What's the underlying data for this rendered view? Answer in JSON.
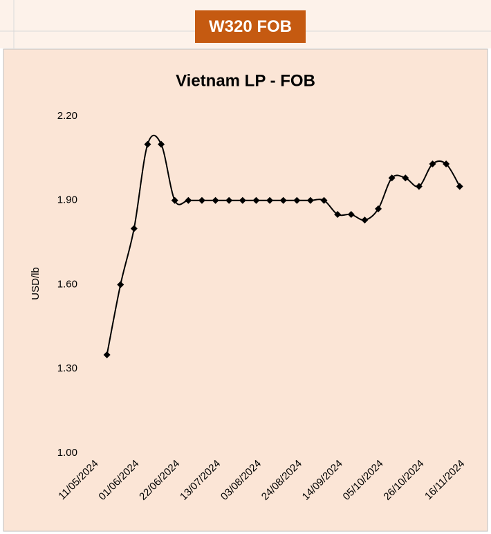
{
  "header": "W320 FOB",
  "chart_data": {
    "type": "line",
    "title": "Vietnam LP - FOB",
    "y_label": "USD/lb",
    "categories": [
      "11/05/2024",
      null,
      null,
      "01/06/2024",
      null,
      null,
      "22/06/2024",
      null,
      null,
      "13/07/2024",
      null,
      null,
      "03/08/2024",
      null,
      null,
      "24/08/2024",
      null,
      null,
      "14/09/2024",
      null,
      null,
      "05/10/2024",
      null,
      null,
      "26/10/2024",
      null,
      null,
      "16/11/2024"
    ],
    "series": [
      {
        "name": "Vietnam LP - FOB",
        "color": "#000000",
        "values": [
          null,
          1.35,
          1.6,
          1.8,
          2.1,
          2.1,
          1.9,
          1.9,
          1.9,
          1.9,
          1.9,
          1.9,
          1.9,
          1.9,
          1.9,
          1.9,
          1.9,
          1.9,
          1.85,
          1.85,
          1.83,
          1.87,
          1.98,
          1.98,
          1.95,
          2.03,
          2.03,
          1.95
        ]
      }
    ],
    "ylim": [
      1.0,
      2.2
    ],
    "yticks": [
      {
        "value": 1.0,
        "label": "1.00"
      },
      {
        "value": 1.3,
        "label": "1.30"
      },
      {
        "value": 1.6,
        "label": "1.60"
      },
      {
        "value": 1.9,
        "label": "1.90"
      },
      {
        "value": 2.2,
        "label": "2.20"
      }
    ],
    "smooth": true,
    "marker": "diamond",
    "grid": false
  }
}
